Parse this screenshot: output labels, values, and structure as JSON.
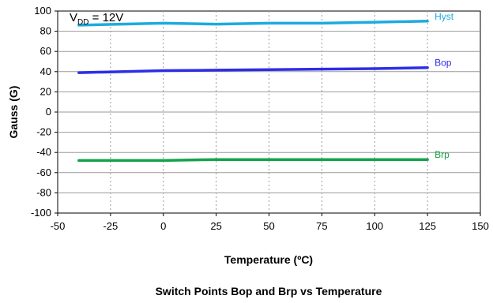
{
  "chart_data": {
    "type": "line",
    "caption": "Switch Points Bop and Brp vs Temperature",
    "xlabel": "Temperature (ºC)",
    "ylabel": "Gauss  (G)",
    "xlim": [
      -50,
      150
    ],
    "ylim": [
      -100,
      100
    ],
    "xticks": [
      -50,
      -25,
      0,
      25,
      50,
      75,
      100,
      125,
      150
    ],
    "yticks": [
      -100,
      -80,
      -60,
      -40,
      -20,
      0,
      20,
      40,
      60,
      80,
      100
    ],
    "grid": true,
    "annotation": {
      "base": "V",
      "sub": "DD",
      "rest": " = 12V"
    },
    "series": [
      {
        "name": "Hyst",
        "color": "#1EAADF",
        "x": [
          -40,
          0,
          25,
          50,
          75,
          100,
          125
        ],
        "y": [
          86,
          88,
          87,
          88,
          88,
          89,
          90
        ]
      },
      {
        "name": "Bop",
        "color": "#2D2DE8",
        "x": [
          -40,
          0,
          25,
          50,
          75,
          100,
          125
        ],
        "y": [
          39,
          41,
          41.5,
          42,
          42.5,
          43,
          44
        ]
      },
      {
        "name": "Brp",
        "color": "#14A34A",
        "x": [
          -40,
          0,
          25,
          50,
          75,
          100,
          125
        ],
        "y": [
          -48,
          -48,
          -47,
          -47,
          -47,
          -47,
          -47
        ]
      }
    ]
  }
}
